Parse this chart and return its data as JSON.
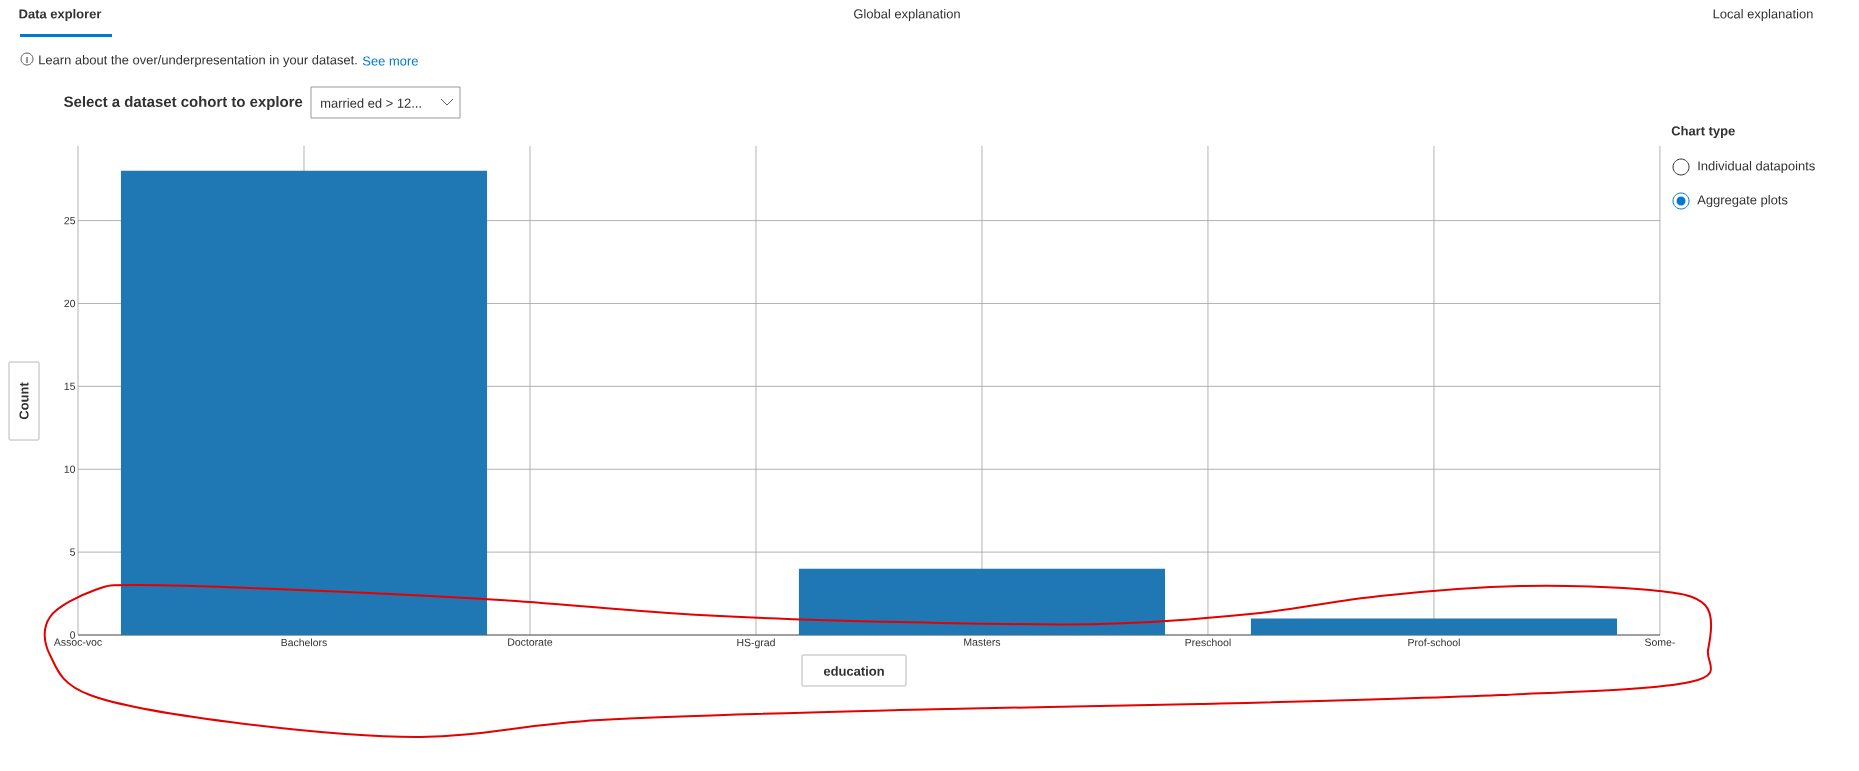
{
  "chart_data": {
    "type": "bar",
    "xlabel": "education",
    "ylabel": "Count",
    "categories": [
      "Assoc-voc",
      "Bachelors",
      "Doctorate",
      "HS-grad",
      "Masters",
      "Preschool",
      "Prof-school",
      "Some-"
    ],
    "values": [
      0,
      28,
      0,
      0,
      4,
      0,
      1,
      0
    ],
    "color": "#1f77b4",
    "ylim": [
      0,
      29.5
    ],
    "yticks": [
      0,
      5,
      10,
      15,
      20,
      25
    ],
    "grid": true,
    "annotations": [
      "Data explorer",
      "Global explanation",
      "Local explanation",
      "Learn about the over/underpresentation in your dataset.",
      "See more",
      "Select a dataset cohort to explore",
      "married ed > 12...",
      "Chart type",
      "Individual datapoints",
      "Aggregate plots"
    ]
  }
}
